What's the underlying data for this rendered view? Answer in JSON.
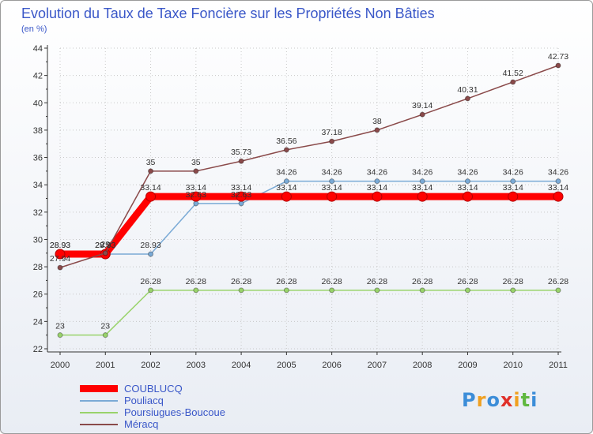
{
  "chart_data": {
    "type": "line",
    "title": "Evolution du Taux de Taxe Foncière sur les Propriétés Non Bâties",
    "ylabel": "(en %)",
    "xlabel": "",
    "categories": [
      "2000",
      "2001",
      "2002",
      "2003",
      "2004",
      "2005",
      "2006",
      "2007",
      "2008",
      "2009",
      "2010",
      "2011"
    ],
    "ylim": [
      22,
      44
    ],
    "yticks": [
      22,
      24,
      26,
      28,
      30,
      32,
      34,
      36,
      38,
      40,
      42,
      44
    ],
    "yticks_labels": [
      "22",
      "24",
      "26",
      "28",
      "30",
      "32",
      "34",
      "36",
      "38",
      "40",
      "42",
      "44"
    ],
    "grid": true,
    "legend_position": "bottom-left",
    "series": [
      {
        "name": "COUBLUCQ",
        "color": "#ff0000",
        "values": [
          28.93,
          28.93,
          33.14,
          33.14,
          33.14,
          33.14,
          33.14,
          33.14,
          33.14,
          33.14,
          33.14,
          33.14
        ],
        "labels": [
          "28.93",
          "28.93",
          "33.14",
          "33.14",
          "33.14",
          "33.14",
          "33.14",
          "33.14",
          "33.14",
          "33.14",
          "33.14",
          "33.14"
        ]
      },
      {
        "name": "Pouliacq",
        "color": "#7aaad6",
        "values": [
          28.93,
          28.93,
          28.93,
          32.63,
          32.63,
          34.26,
          34.26,
          34.26,
          34.26,
          34.26,
          34.26,
          34.26
        ],
        "labels": [
          "28.93",
          "28.93",
          "28.93",
          "32.63",
          "32.63",
          "34.26",
          "34.26",
          "34.26",
          "34.26",
          "34.26",
          "34.26",
          "34.26"
        ]
      },
      {
        "name": "Poursiugues-Boucoue",
        "color": "#99d36b",
        "values": [
          23,
          23,
          26.28,
          26.28,
          26.28,
          26.28,
          26.28,
          26.28,
          26.28,
          26.28,
          26.28,
          26.28
        ],
        "labels": [
          "23",
          "23",
          "26.28",
          "26.28",
          "26.28",
          "26.28",
          "26.28",
          "26.28",
          "26.28",
          "26.28",
          "26.28",
          "26.28"
        ]
      },
      {
        "name": "Méracq",
        "color": "#8a4a4a",
        "values": [
          27.94,
          29,
          35,
          35,
          35.73,
          36.56,
          37.18,
          38,
          39.14,
          40.31,
          41.52,
          42.73
        ],
        "labels": [
          "27.94",
          "29",
          "35",
          "35",
          "35.73",
          "36.56",
          "37.18",
          "38",
          "39.14",
          "40.31",
          "41.52",
          "42.73"
        ]
      }
    ]
  },
  "logo": {
    "letters": [
      "P",
      "r",
      "o",
      "x",
      "i",
      "t",
      "i"
    ],
    "colors": [
      "#3c8dd8",
      "#f0a020",
      "#3c8dd8",
      "#e0302a",
      "#f0a020",
      "#60b840",
      "#3c8dd8"
    ]
  }
}
